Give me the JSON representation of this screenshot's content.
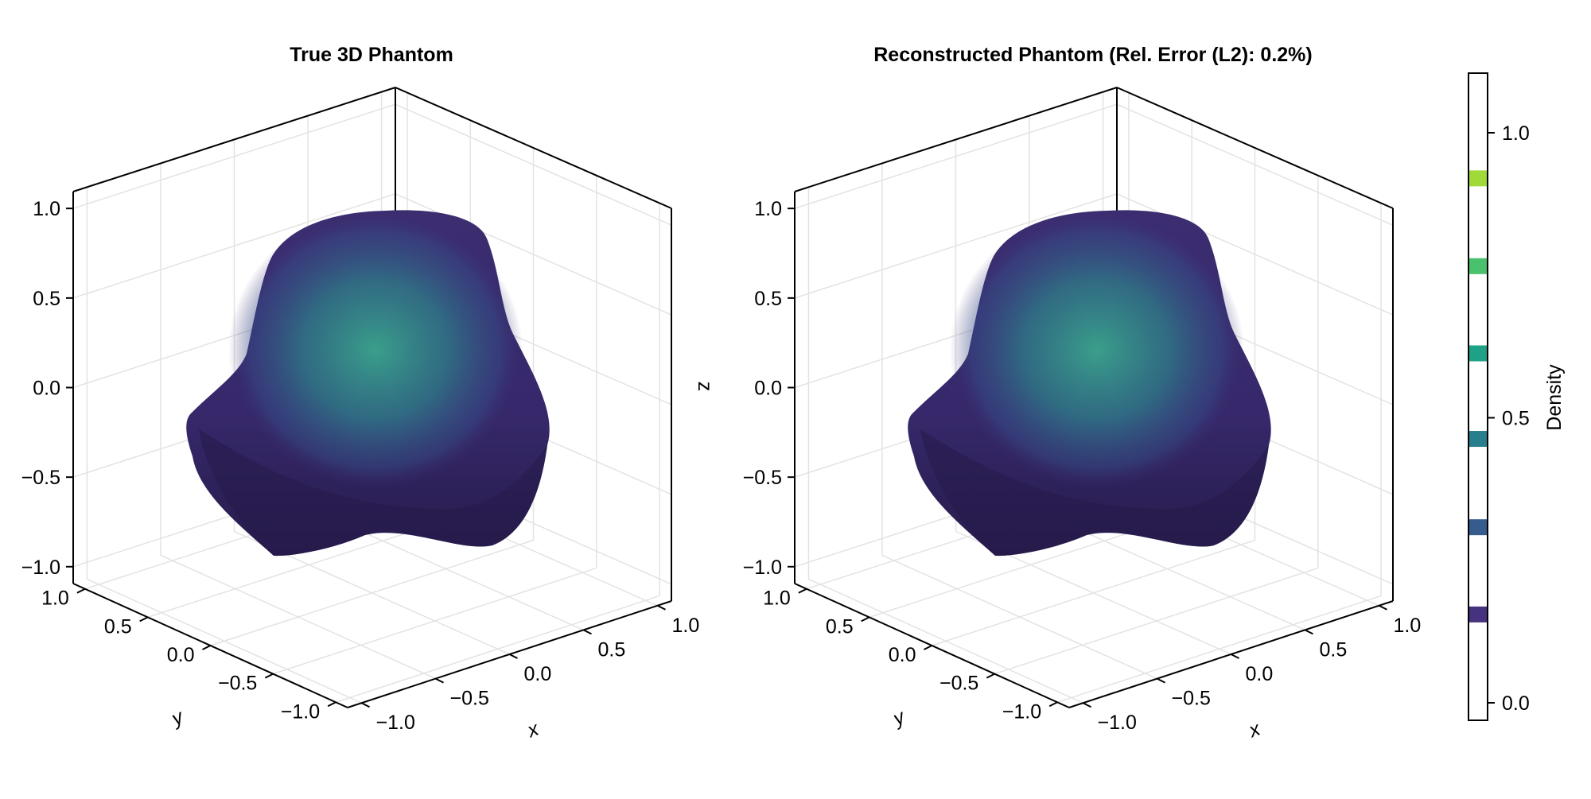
{
  "chart_data": [
    {
      "type": "volume-3d",
      "title": "True 3D Phantom",
      "xlabel": "x",
      "ylabel": "y",
      "zlabel": "",
      "xlim": [
        -1,
        1
      ],
      "ylim": [
        -1,
        1
      ],
      "zlim": [
        -1,
        1
      ],
      "xticks": [
        "−1.0",
        "−0.5",
        "0.0",
        "0.5",
        "1.0"
      ],
      "yticks": [
        "1.0",
        "0.5",
        "0.0",
        "−0.5",
        "−1.0"
      ],
      "zticks": [
        "−1.0",
        "−0.5",
        "0.0",
        "0.5",
        "1.0"
      ],
      "grid": true
    },
    {
      "type": "volume-3d",
      "title": "Reconstructed Phantom (Rel. Error (L2): 0.2%)",
      "xlabel": "x",
      "ylabel": "y",
      "zlabel": "z",
      "xlim": [
        -1,
        1
      ],
      "ylim": [
        -1,
        1
      ],
      "zlim": [
        -1,
        1
      ],
      "xticks": [
        "−1.0",
        "−0.5",
        "0.0",
        "0.5",
        "1.0"
      ],
      "yticks": [
        "1.0",
        "0.5",
        "0.0",
        "−0.5",
        "−1.0"
      ],
      "zticks": [
        "−1.0",
        "−0.5",
        "0.0",
        "0.5",
        "1.0"
      ],
      "grid": true
    }
  ],
  "colorbar": {
    "label": "Density",
    "colormap": "viridis",
    "range": [
      0,
      1.05
    ],
    "ticks": [
      {
        "value": 0.0,
        "label": "0.0"
      },
      {
        "value": 0.5,
        "label": "0.5"
      },
      {
        "value": 1.0,
        "label": "1.0"
      }
    ],
    "levels": [
      {
        "value": 0.155,
        "color": "#46327e"
      },
      {
        "value": 0.308,
        "color": "#365c8d"
      },
      {
        "value": 0.463,
        "color": "#277f8e"
      },
      {
        "value": 0.613,
        "color": "#1fa187"
      },
      {
        "value": 0.766,
        "color": "#4ac16d"
      },
      {
        "value": 0.92,
        "color": "#a0da39"
      }
    ]
  },
  "colors": {
    "surface_outer": "#3a2c6e",
    "surface_shadow": "#271c4d",
    "core": "#2f8f8a"
  }
}
